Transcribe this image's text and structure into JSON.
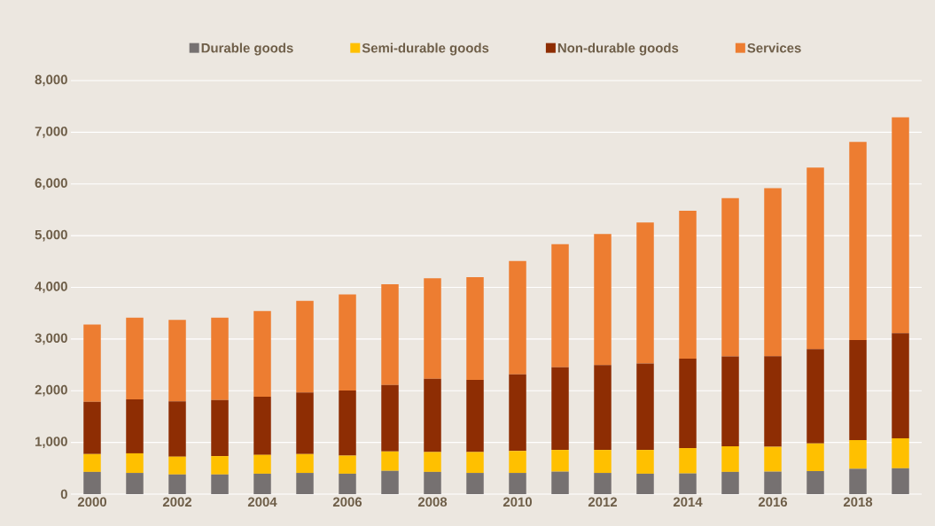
{
  "chart_data": {
    "type": "bar",
    "stacked": true,
    "categories": [
      "2000",
      null,
      "2002",
      null,
      "2004",
      null,
      "2006",
      null,
      "2008",
      null,
      "2010",
      null,
      "2012",
      null,
      "2014",
      null,
      "2016",
      null,
      "2018",
      null
    ],
    "series": [
      {
        "name": "Durable goods",
        "color": "#767171",
        "values": [
          430,
          410,
          380,
          380,
          395,
          410,
          395,
          450,
          430,
          410,
          410,
          435,
          410,
          395,
          400,
          430,
          435,
          445,
          490,
          500
        ]
      },
      {
        "name": "Semi-durable goods",
        "color": "#ffc000",
        "values": [
          345,
          380,
          345,
          355,
          365,
          365,
          350,
          375,
          385,
          405,
          425,
          420,
          445,
          460,
          490,
          495,
          480,
          535,
          555,
          580
        ]
      },
      {
        "name": "Non-durable goods",
        "color": "#8e2d03",
        "values": [
          1010,
          1045,
          1070,
          1085,
          1125,
          1190,
          1260,
          1285,
          1415,
          1395,
          1480,
          1600,
          1640,
          1670,
          1730,
          1740,
          1755,
          1825,
          1935,
          2035
        ]
      },
      {
        "name": "Services",
        "color": "#ed7d31",
        "values": [
          1495,
          1580,
          1575,
          1595,
          1655,
          1775,
          1860,
          1950,
          1945,
          1985,
          2195,
          2380,
          2535,
          2730,
          2860,
          3060,
          3250,
          3510,
          3835,
          4175
        ]
      }
    ],
    "ylim": [
      0,
      8000
    ],
    "yticks": [
      {
        "value": 0,
        "label": "0"
      },
      {
        "value": 1000,
        "label": "1,000"
      },
      {
        "value": 2000,
        "label": "2,000"
      },
      {
        "value": 3000,
        "label": "3,000"
      },
      {
        "value": 4000,
        "label": "4,000"
      },
      {
        "value": 5000,
        "label": "5,000"
      },
      {
        "value": 6000,
        "label": "6,000"
      },
      {
        "value": 7000,
        "label": "7,000"
      },
      {
        "value": 8000,
        "label": "8,000"
      }
    ],
    "grid": "y",
    "legend": "top"
  }
}
